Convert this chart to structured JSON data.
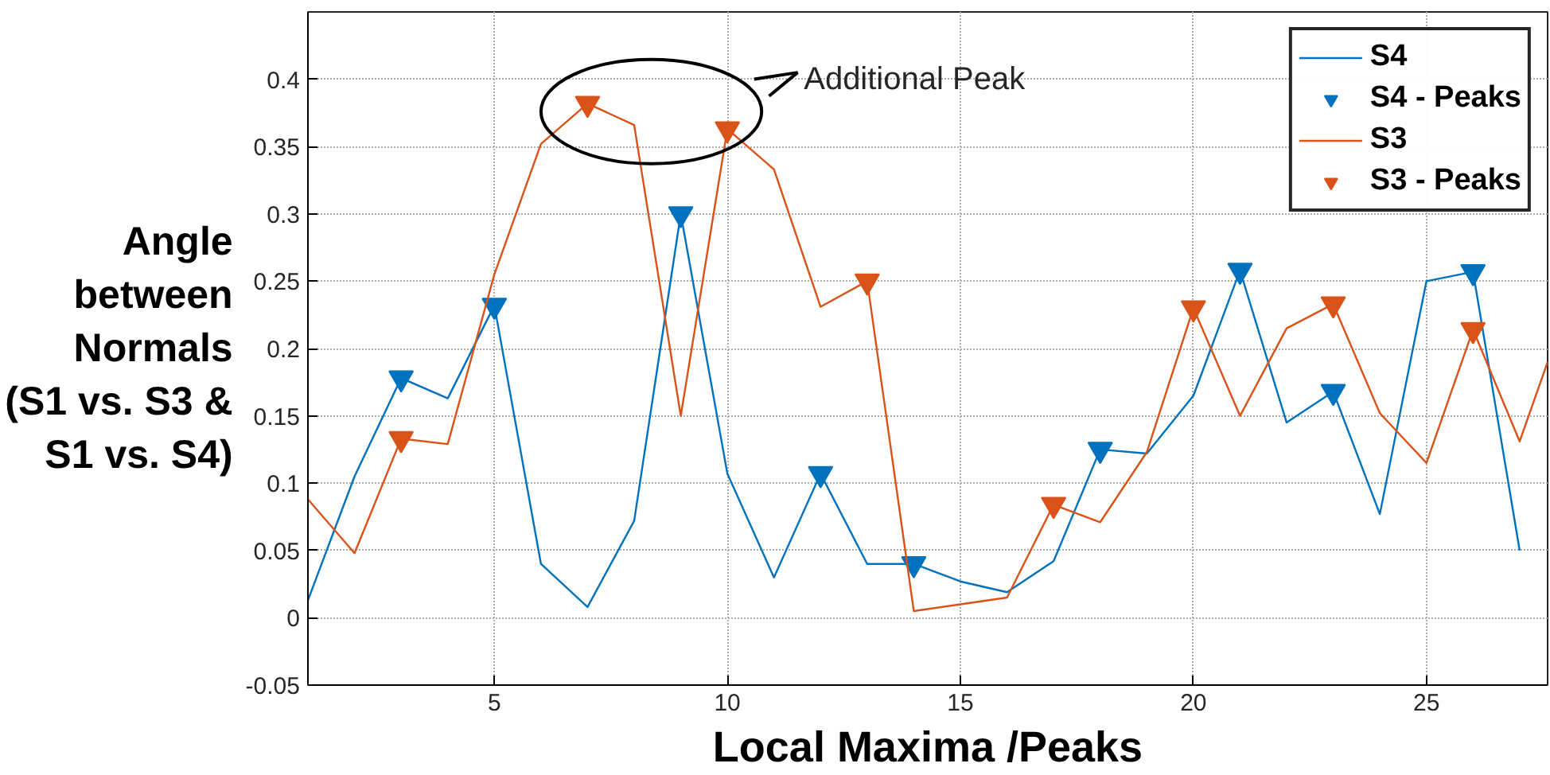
{
  "chart_data": {
    "type": "line",
    "xlabel": "Local Maxima /Peaks",
    "ylabel": "Angle\nbetween\nNormals\n(S1 vs. S3 &\nS1 vs. S4)",
    "x": [
      1,
      2,
      3,
      4,
      5,
      6,
      7,
      8,
      9,
      10,
      11,
      12,
      13,
      14,
      15,
      16,
      17,
      18,
      19,
      20,
      21,
      22,
      23,
      24,
      25,
      26,
      27
    ],
    "series": [
      {
        "name": "S4",
        "color": "#0072bd",
        "marker": "none",
        "values": [
          0.013,
          0.105,
          0.178,
          0.163,
          0.232,
          0.04,
          0.008,
          0.072,
          0.3,
          0.107,
          0.03,
          0.107,
          0.04,
          0.04,
          0.027,
          0.019,
          0.042,
          0.125,
          0.122,
          0.165,
          0.258,
          0.145,
          0.168,
          0.077,
          0.25,
          0.257,
          0.05
        ]
      },
      {
        "name": "S4 - Peaks",
        "color": "#0072bd",
        "type": "scatter",
        "marker": "triangle",
        "x": [
          3,
          5,
          9,
          12,
          14,
          18,
          21,
          23,
          26
        ],
        "values": [
          0.178,
          0.232,
          0.3,
          0.107,
          0.04,
          0.125,
          0.258,
          0.168,
          0.257
        ]
      },
      {
        "name": "S3",
        "color": "#d95319",
        "marker": "none",
        "x": [
          1,
          2,
          3,
          4,
          5,
          6,
          7,
          8,
          9,
          10,
          11,
          12,
          13,
          14,
          15,
          16,
          17,
          18,
          19,
          20,
          21,
          22,
          23,
          24,
          25,
          26,
          27,
          27.6
        ],
        "values": [
          0.088,
          0.048,
          0.133,
          0.129,
          0.255,
          0.352,
          0.382,
          0.366,
          0.15,
          0.363,
          0.333,
          0.231,
          0.25,
          0.005,
          0.01,
          0.015,
          0.084,
          0.071,
          0.123,
          0.23,
          0.15,
          0.215,
          0.233,
          0.152,
          0.115,
          0.214,
          0.131,
          0.19
        ]
      },
      {
        "name": "S3 - Peaks",
        "color": "#d95319",
        "type": "scatter",
        "marker": "triangle",
        "x": [
          3,
          7,
          10,
          13,
          17,
          20,
          23,
          26
        ],
        "values": [
          0.133,
          0.382,
          0.363,
          0.25,
          0.084,
          0.23,
          0.233,
          0.214
        ]
      }
    ],
    "xlim": [
      1,
      27.6
    ],
    "xticks": [
      5,
      10,
      15,
      20,
      25
    ],
    "ylim": [
      -0.05,
      0.45
    ],
    "yticks": [
      -0.05,
      0,
      0.05,
      0.1,
      0.15,
      0.2,
      0.25,
      0.3,
      0.35,
      0.4
    ],
    "grid": true,
    "legend": "top right",
    "annotations": [
      "Additional Peak"
    ]
  }
}
